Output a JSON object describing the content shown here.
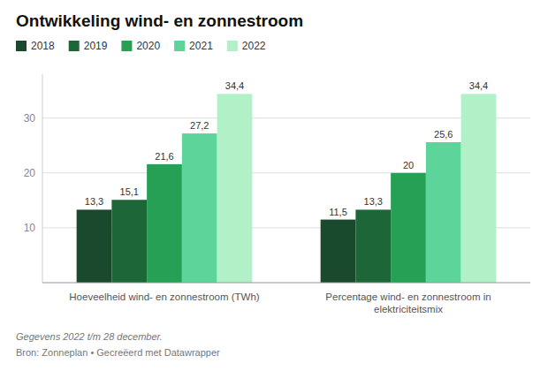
{
  "chart_data": {
    "type": "bar",
    "title": "Ontwikkeling wind- en zonnestroom",
    "categories": [
      "Hoeveelheid wind- en zonnestroom (TWh)",
      "Percentage wind- en zonnestroom in\nelektriciteitsmix"
    ],
    "series": [
      {
        "name": "2018",
        "color": "#1a4a2e",
        "values": [
          13.3,
          11.5
        ],
        "value_labels": [
          "13,3",
          "11,5"
        ]
      },
      {
        "name": "2019",
        "color": "#1d6637",
        "values": [
          15.1,
          13.3
        ],
        "value_labels": [
          "15,1",
          "13,3"
        ]
      },
      {
        "name": "2020",
        "color": "#26a055",
        "values": [
          21.6,
          20.0
        ],
        "value_labels": [
          "21,6",
          "20"
        ]
      },
      {
        "name": "2021",
        "color": "#5dd49a",
        "values": [
          27.2,
          25.6
        ],
        "value_labels": [
          "27,2",
          "25,6"
        ]
      },
      {
        "name": "2022",
        "color": "#b2f0c8",
        "values": [
          34.4,
          34.4
        ],
        "value_labels": [
          "34,4",
          "34,4"
        ]
      }
    ],
    "ylim": [
      0,
      38
    ],
    "yticks": [
      10,
      20,
      30
    ],
    "grid": true,
    "legend": "upper left",
    "data_labels": true,
    "annotations": [
      "Gegevens 2022 t/m 28 december.",
      "Bron: Zonneplan • Gecreëerd met Datawrapper"
    ]
  }
}
